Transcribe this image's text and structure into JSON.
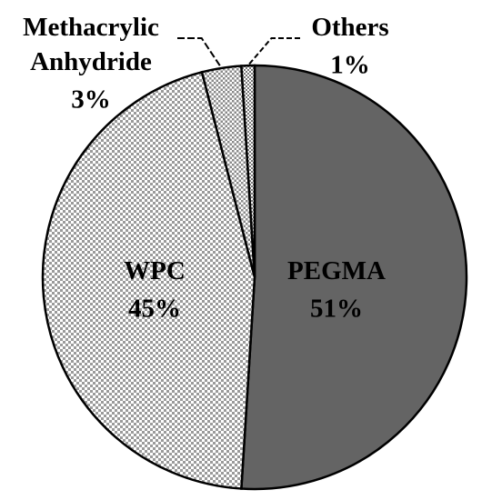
{
  "chart_data": {
    "type": "pie",
    "categories": [
      "PEGMA",
      "WPC",
      "Methacrylic Anhydride",
      "Others"
    ],
    "values": [
      51,
      45,
      3,
      1
    ],
    "value_labels": [
      "51%",
      "45%",
      "3%",
      "1%"
    ],
    "colors": [
      "#646464",
      "#9a9a9a",
      "#8a8a8a",
      "#7a7a7a"
    ]
  }
}
